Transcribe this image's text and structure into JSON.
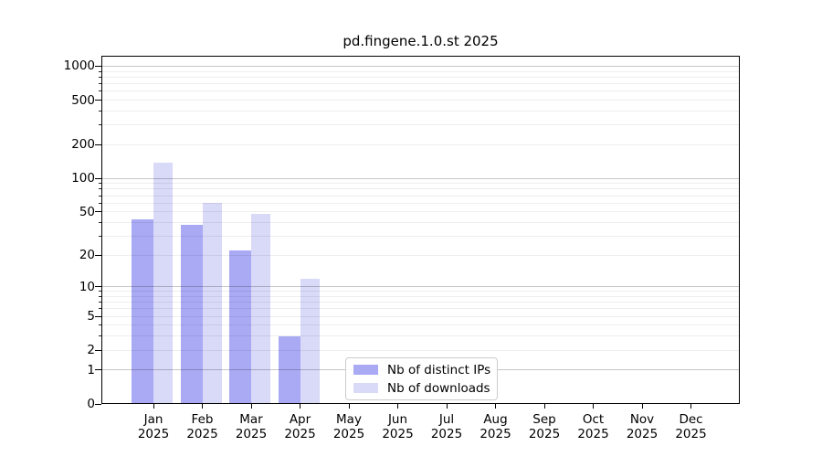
{
  "title": "pd.fingene.1.0.st 2025",
  "chart_data": {
    "type": "bar",
    "title": "pd.fingene.1.0.st 2025",
    "categories": [
      "Jan",
      "Feb",
      "Mar",
      "Apr",
      "May",
      "Jun",
      "Jul",
      "Aug",
      "Sep",
      "Oct",
      "Nov",
      "Dec"
    ],
    "x_year": "2025",
    "series": [
      {
        "name": "Nb of distinct IPs",
        "color": "#a9a9f4",
        "values": [
          43,
          38,
          22,
          3,
          null,
          null,
          null,
          null,
          null,
          null,
          null,
          null
        ]
      },
      {
        "name": "Nb of downloads",
        "color": "#d9d9f8",
        "values": [
          137,
          60,
          48,
          12,
          null,
          null,
          null,
          null,
          null,
          null,
          null,
          null
        ]
      }
    ],
    "yscale": "log1p",
    "ylim": [
      0,
      1240
    ],
    "y_ticks": [
      0,
      1,
      2,
      5,
      10,
      20,
      50,
      100,
      200,
      500,
      1000
    ],
    "grid": "horizontal-major-and-minor",
    "legend_position": "lower-center"
  },
  "colors": {
    "bar_distinct_ips": "#a9a9f4",
    "bar_downloads": "#d9d9f8",
    "axis": "#000000",
    "major_grid": "rgba(0,0,0,0.22)",
    "minor_grid": "rgba(0,0,0,0.065)",
    "legend_border": "#cccccc",
    "background": "#ffffff"
  }
}
